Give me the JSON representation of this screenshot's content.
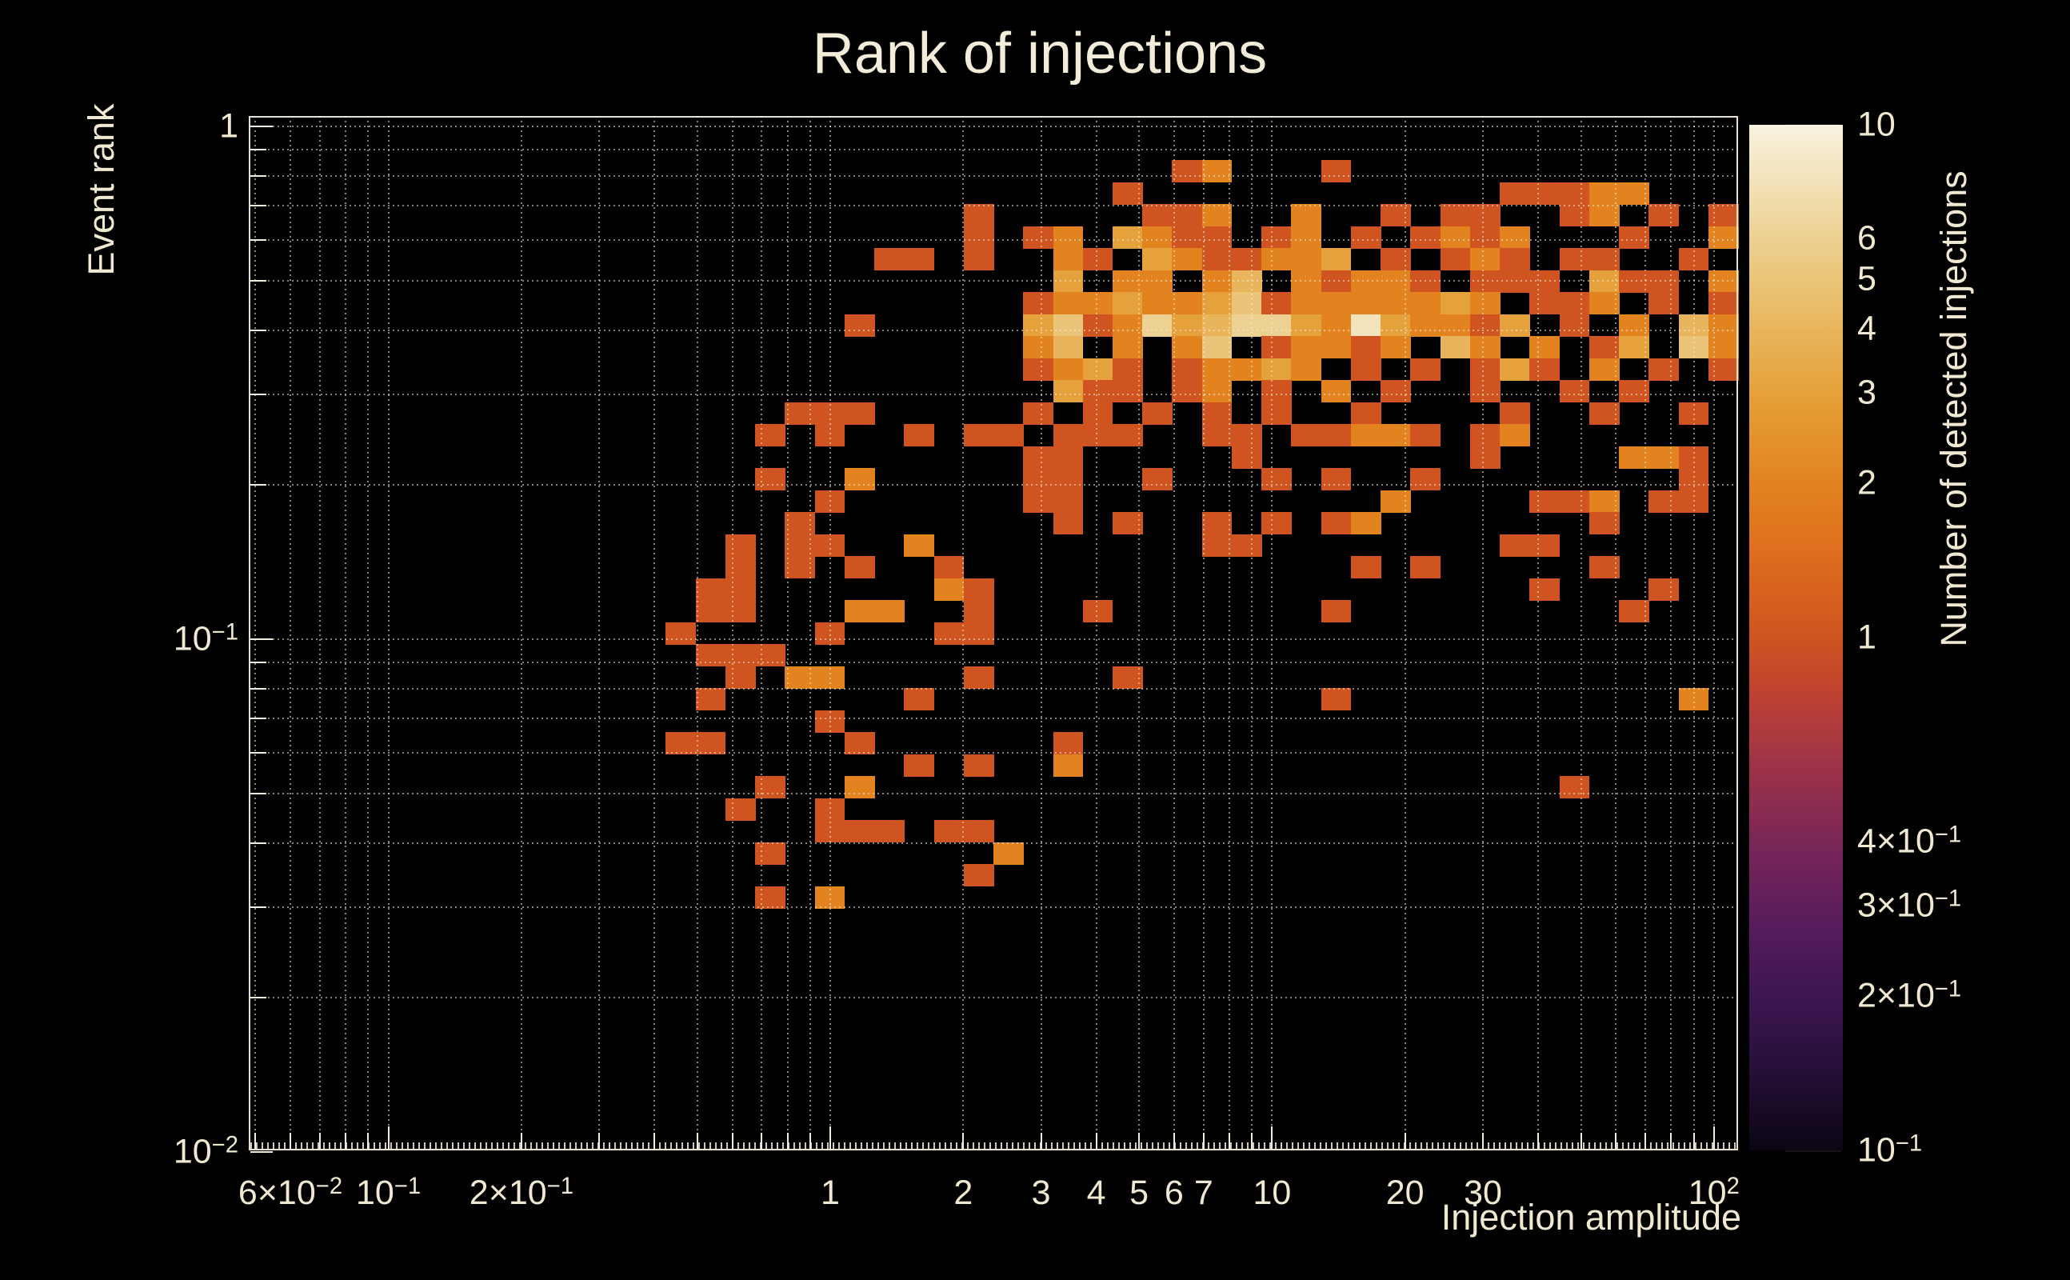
{
  "chart_data": {
    "type": "heatmap",
    "title": "Rank of injections",
    "xlabel": "Injection amplitude",
    "ylabel": "Event rank",
    "colorbar_label": "Number of detected injections",
    "x_scale": "log",
    "y_scale": "log",
    "color_scale": "log",
    "x_range": [
      0.0483,
      113.4
    ],
    "y_range": [
      0.01007,
      1.0478
    ],
    "color_range": [
      0.1,
      10
    ],
    "grid": "dotted",
    "background_color": "#000000",
    "text_color": "#f0e8d0",
    "n_bins_x": 50,
    "n_bins_y": 47,
    "x_tick_labels": [
      {
        "v": 0.06,
        "label": "6×10^-2"
      },
      {
        "v": 0.1,
        "label": "10^-1"
      },
      {
        "v": 0.2,
        "label": "2×10^-1"
      },
      {
        "v": 1,
        "label": "1"
      },
      {
        "v": 2,
        "label": "2"
      },
      {
        "v": 3,
        "label": "3"
      },
      {
        "v": 4,
        "label": "4"
      },
      {
        "v": 5,
        "label": "5"
      },
      {
        "v": 6,
        "label": "6"
      },
      {
        "v": 7,
        "label": "7"
      },
      {
        "v": 10,
        "label": "10"
      },
      {
        "v": 20,
        "label": "20"
      },
      {
        "v": 30,
        "label": "30"
      },
      {
        "v": 100,
        "label": "10^2"
      }
    ],
    "y_tick_labels": [
      {
        "v": 1,
        "label": "1"
      },
      {
        "v": 0.1,
        "label": "10^-1"
      },
      {
        "v": 0.01,
        "label": "10^-2"
      }
    ],
    "colorbar_tick_labels": [
      {
        "v": 10,
        "label": "10"
      },
      {
        "v": 6,
        "label": "6"
      },
      {
        "v": 5,
        "label": "5"
      },
      {
        "v": 4,
        "label": "4"
      },
      {
        "v": 3,
        "label": "3"
      },
      {
        "v": 2,
        "label": "2"
      },
      {
        "v": 1,
        "label": "1"
      },
      {
        "v": 0.4,
        "label": "4×10^-1"
      },
      {
        "v": 0.3,
        "label": "3×10^-1"
      },
      {
        "v": 0.2,
        "label": "2×10^-1"
      },
      {
        "v": 0.1,
        "label": "10^-1"
      }
    ],
    "colormap_stops": [
      [
        0.0,
        "#0b0614"
      ],
      [
        0.08,
        "#261039"
      ],
      [
        0.15,
        "#3d1651"
      ],
      [
        0.22,
        "#571c5c"
      ],
      [
        0.3,
        "#7a2657"
      ],
      [
        0.38,
        "#a03447"
      ],
      [
        0.45,
        "#c04330"
      ],
      [
        0.5,
        "#d05420"
      ],
      [
        0.57,
        "#dc6a1e"
      ],
      [
        0.65,
        "#e2831f"
      ],
      [
        0.72,
        "#e49b31"
      ],
      [
        0.8,
        "#e8b55c"
      ],
      [
        0.87,
        "#ebcb85"
      ],
      [
        0.93,
        "#f1ddae"
      ],
      [
        1.0,
        "#f8f2e0"
      ]
    ],
    "cells": [
      [
        31,
        2,
        1
      ],
      [
        32,
        2,
        2
      ],
      [
        36,
        2,
        1
      ],
      [
        29,
        3,
        1
      ],
      [
        42,
        3,
        1
      ],
      [
        43,
        3,
        1
      ],
      [
        44,
        3,
        1
      ],
      [
        45,
        3,
        2
      ],
      [
        46,
        3,
        2
      ],
      [
        24,
        4,
        1
      ],
      [
        30,
        4,
        1
      ],
      [
        31,
        4,
        1
      ],
      [
        32,
        4,
        2
      ],
      [
        35,
        4,
        2
      ],
      [
        38,
        4,
        1
      ],
      [
        40,
        4,
        1
      ],
      [
        41,
        4,
        1
      ],
      [
        44,
        4,
        1
      ],
      [
        45,
        4,
        2
      ],
      [
        47,
        4,
        1
      ],
      [
        49,
        4,
        1
      ],
      [
        24,
        5,
        1
      ],
      [
        26,
        5,
        1
      ],
      [
        27,
        5,
        2
      ],
      [
        29,
        5,
        3
      ],
      [
        30,
        5,
        2
      ],
      [
        31,
        5,
        1
      ],
      [
        32,
        5,
        1
      ],
      [
        34,
        5,
        1
      ],
      [
        35,
        5,
        2
      ],
      [
        37,
        5,
        1
      ],
      [
        39,
        5,
        1
      ],
      [
        40,
        5,
        2
      ],
      [
        41,
        5,
        1
      ],
      [
        42,
        5,
        2
      ],
      [
        46,
        5,
        1
      ],
      [
        49,
        5,
        2
      ],
      [
        21,
        6,
        1
      ],
      [
        22,
        6,
        1
      ],
      [
        24,
        6,
        1
      ],
      [
        27,
        6,
        2
      ],
      [
        28,
        6,
        1
      ],
      [
        30,
        6,
        3
      ],
      [
        31,
        6,
        2
      ],
      [
        32,
        6,
        1
      ],
      [
        33,
        6,
        1
      ],
      [
        34,
        6,
        2
      ],
      [
        35,
        6,
        2
      ],
      [
        36,
        6,
        3
      ],
      [
        38,
        6,
        1
      ],
      [
        40,
        6,
        1
      ],
      [
        41,
        6,
        2
      ],
      [
        42,
        6,
        1
      ],
      [
        44,
        6,
        1
      ],
      [
        45,
        6,
        1
      ],
      [
        48,
        6,
        1
      ],
      [
        27,
        7,
        3
      ],
      [
        29,
        7,
        2
      ],
      [
        30,
        7,
        2
      ],
      [
        32,
        7,
        2
      ],
      [
        33,
        7,
        4
      ],
      [
        35,
        7,
        2
      ],
      [
        36,
        7,
        1
      ],
      [
        37,
        7,
        2
      ],
      [
        38,
        7,
        2
      ],
      [
        39,
        7,
        1
      ],
      [
        41,
        7,
        1
      ],
      [
        42,
        7,
        1
      ],
      [
        43,
        7,
        1
      ],
      [
        45,
        7,
        3
      ],
      [
        46,
        7,
        1
      ],
      [
        47,
        7,
        1
      ],
      [
        49,
        7,
        2
      ],
      [
        26,
        8,
        1
      ],
      [
        27,
        8,
        2
      ],
      [
        28,
        8,
        2
      ],
      [
        29,
        8,
        3
      ],
      [
        30,
        8,
        2
      ],
      [
        31,
        8,
        2
      ],
      [
        32,
        8,
        3
      ],
      [
        33,
        8,
        5
      ],
      [
        34,
        8,
        1
      ],
      [
        35,
        8,
        2
      ],
      [
        36,
        8,
        2
      ],
      [
        37,
        8,
        2
      ],
      [
        38,
        8,
        2
      ],
      [
        39,
        8,
        2
      ],
      [
        40,
        8,
        3
      ],
      [
        41,
        8,
        2
      ],
      [
        43,
        8,
        1
      ],
      [
        44,
        8,
        1
      ],
      [
        45,
        8,
        2
      ],
      [
        47,
        8,
        1
      ],
      [
        49,
        8,
        1
      ],
      [
        20,
        9,
        1
      ],
      [
        26,
        9,
        3
      ],
      [
        27,
        9,
        5
      ],
      [
        28,
        9,
        1
      ],
      [
        29,
        9,
        2
      ],
      [
        30,
        9,
        6
      ],
      [
        31,
        9,
        3
      ],
      [
        32,
        9,
        4
      ],
      [
        33,
        9,
        6
      ],
      [
        34,
        9,
        6
      ],
      [
        35,
        9,
        3
      ],
      [
        36,
        9,
        2
      ],
      [
        37,
        9,
        8
      ],
      [
        38,
        9,
        3
      ],
      [
        39,
        9,
        2
      ],
      [
        40,
        9,
        2
      ],
      [
        41,
        9,
        1
      ],
      [
        42,
        9,
        3
      ],
      [
        44,
        9,
        1
      ],
      [
        46,
        9,
        2
      ],
      [
        48,
        9,
        4
      ],
      [
        49,
        9,
        2
      ],
      [
        26,
        10,
        2
      ],
      [
        27,
        10,
        4
      ],
      [
        29,
        10,
        2
      ],
      [
        31,
        10,
        2
      ],
      [
        32,
        10,
        5
      ],
      [
        34,
        10,
        1
      ],
      [
        35,
        10,
        2
      ],
      [
        36,
        10,
        2
      ],
      [
        37,
        10,
        1
      ],
      [
        38,
        10,
        2
      ],
      [
        40,
        10,
        4
      ],
      [
        41,
        10,
        2
      ],
      [
        43,
        10,
        2
      ],
      [
        45,
        10,
        1
      ],
      [
        46,
        10,
        3
      ],
      [
        48,
        10,
        5
      ],
      [
        49,
        10,
        2
      ],
      [
        26,
        11,
        1
      ],
      [
        27,
        11,
        2
      ],
      [
        28,
        11,
        3
      ],
      [
        29,
        11,
        1
      ],
      [
        31,
        11,
        1
      ],
      [
        32,
        11,
        2
      ],
      [
        33,
        11,
        2
      ],
      [
        34,
        11,
        3
      ],
      [
        35,
        11,
        2
      ],
      [
        37,
        11,
        1
      ],
      [
        39,
        11,
        1
      ],
      [
        41,
        11,
        1
      ],
      [
        42,
        11,
        3
      ],
      [
        43,
        11,
        1
      ],
      [
        45,
        11,
        2
      ],
      [
        47,
        11,
        1
      ],
      [
        49,
        11,
        1
      ],
      [
        27,
        12,
        3
      ],
      [
        28,
        12,
        1
      ],
      [
        29,
        12,
        1
      ],
      [
        31,
        12,
        1
      ],
      [
        32,
        12,
        2
      ],
      [
        34,
        12,
        1
      ],
      [
        36,
        12,
        2
      ],
      [
        38,
        12,
        1
      ],
      [
        41,
        12,
        1
      ],
      [
        44,
        12,
        1
      ],
      [
        46,
        12,
        1
      ],
      [
        18,
        13,
        1
      ],
      [
        19,
        13,
        1
      ],
      [
        20,
        13,
        1
      ],
      [
        26,
        13,
        1
      ],
      [
        28,
        13,
        1
      ],
      [
        30,
        13,
        1
      ],
      [
        32,
        13,
        1
      ],
      [
        34,
        13,
        1
      ],
      [
        37,
        13,
        1
      ],
      [
        42,
        13,
        1
      ],
      [
        45,
        13,
        1
      ],
      [
        48,
        13,
        1
      ],
      [
        17,
        14,
        1
      ],
      [
        19,
        14,
        1
      ],
      [
        22,
        14,
        1
      ],
      [
        24,
        14,
        1
      ],
      [
        25,
        14,
        1
      ],
      [
        27,
        14,
        1
      ],
      [
        28,
        14,
        1
      ],
      [
        29,
        14,
        1
      ],
      [
        32,
        14,
        1
      ],
      [
        33,
        14,
        1
      ],
      [
        35,
        14,
        1
      ],
      [
        36,
        14,
        1
      ],
      [
        37,
        14,
        2
      ],
      [
        38,
        14,
        2
      ],
      [
        39,
        14,
        1
      ],
      [
        41,
        14,
        1
      ],
      [
        42,
        14,
        2
      ],
      [
        26,
        15,
        1
      ],
      [
        27,
        15,
        1
      ],
      [
        33,
        15,
        1
      ],
      [
        41,
        15,
        1
      ],
      [
        46,
        15,
        2
      ],
      [
        47,
        15,
        2
      ],
      [
        48,
        15,
        1
      ],
      [
        17,
        16,
        1
      ],
      [
        20,
        16,
        2
      ],
      [
        26,
        16,
        1
      ],
      [
        27,
        16,
        1
      ],
      [
        30,
        16,
        1
      ],
      [
        34,
        16,
        1
      ],
      [
        36,
        16,
        1
      ],
      [
        39,
        16,
        1
      ],
      [
        48,
        16,
        1
      ],
      [
        19,
        17,
        1
      ],
      [
        26,
        17,
        1
      ],
      [
        27,
        17,
        1
      ],
      [
        38,
        17,
        2
      ],
      [
        43,
        17,
        1
      ],
      [
        44,
        17,
        1
      ],
      [
        45,
        17,
        2
      ],
      [
        47,
        17,
        1
      ],
      [
        48,
        17,
        1
      ],
      [
        18,
        18,
        1
      ],
      [
        27,
        18,
        1
      ],
      [
        29,
        18,
        1
      ],
      [
        32,
        18,
        1
      ],
      [
        34,
        18,
        1
      ],
      [
        36,
        18,
        1
      ],
      [
        37,
        18,
        2
      ],
      [
        45,
        18,
        1
      ],
      [
        16,
        19,
        1
      ],
      [
        18,
        19,
        1
      ],
      [
        19,
        19,
        1
      ],
      [
        22,
        19,
        2
      ],
      [
        32,
        19,
        1
      ],
      [
        33,
        19,
        1
      ],
      [
        42,
        19,
        1
      ],
      [
        43,
        19,
        1
      ],
      [
        16,
        20,
        1
      ],
      [
        18,
        20,
        1
      ],
      [
        20,
        20,
        1
      ],
      [
        23,
        20,
        1
      ],
      [
        37,
        20,
        1
      ],
      [
        39,
        20,
        1
      ],
      [
        45,
        20,
        1
      ],
      [
        15,
        21,
        1
      ],
      [
        16,
        21,
        1
      ],
      [
        23,
        21,
        2
      ],
      [
        24,
        21,
        1
      ],
      [
        43,
        21,
        1
      ],
      [
        47,
        21,
        1
      ],
      [
        15,
        22,
        1
      ],
      [
        16,
        22,
        1
      ],
      [
        20,
        22,
        2
      ],
      [
        21,
        22,
        2
      ],
      [
        24,
        22,
        1
      ],
      [
        28,
        22,
        1
      ],
      [
        36,
        22,
        1
      ],
      [
        46,
        22,
        1
      ],
      [
        14,
        23,
        1
      ],
      [
        19,
        23,
        1
      ],
      [
        23,
        23,
        1
      ],
      [
        24,
        23,
        1
      ],
      [
        15,
        24,
        1
      ],
      [
        16,
        24,
        1
      ],
      [
        17,
        24,
        1
      ],
      [
        16,
        25,
        1
      ],
      [
        18,
        25,
        2
      ],
      [
        19,
        25,
        2
      ],
      [
        24,
        25,
        1
      ],
      [
        29,
        25,
        1
      ],
      [
        15,
        26,
        1
      ],
      [
        22,
        26,
        1
      ],
      [
        36,
        26,
        1
      ],
      [
        48,
        26,
        2
      ],
      [
        19,
        27,
        1
      ],
      [
        14,
        28,
        1
      ],
      [
        15,
        28,
        1
      ],
      [
        20,
        28,
        1
      ],
      [
        27,
        28,
        1
      ],
      [
        22,
        29,
        1
      ],
      [
        24,
        29,
        1
      ],
      [
        27,
        29,
        2
      ],
      [
        17,
        30,
        1
      ],
      [
        20,
        30,
        2
      ],
      [
        44,
        30,
        1
      ],
      [
        16,
        31,
        1
      ],
      [
        19,
        31,
        1
      ],
      [
        19,
        32,
        1
      ],
      [
        20,
        32,
        1
      ],
      [
        21,
        32,
        1
      ],
      [
        23,
        32,
        1
      ],
      [
        24,
        32,
        1
      ],
      [
        17,
        33,
        1
      ],
      [
        25,
        33,
        2
      ],
      [
        24,
        34,
        1
      ],
      [
        17,
        35,
        1
      ],
      [
        19,
        35,
        2
      ]
    ]
  }
}
